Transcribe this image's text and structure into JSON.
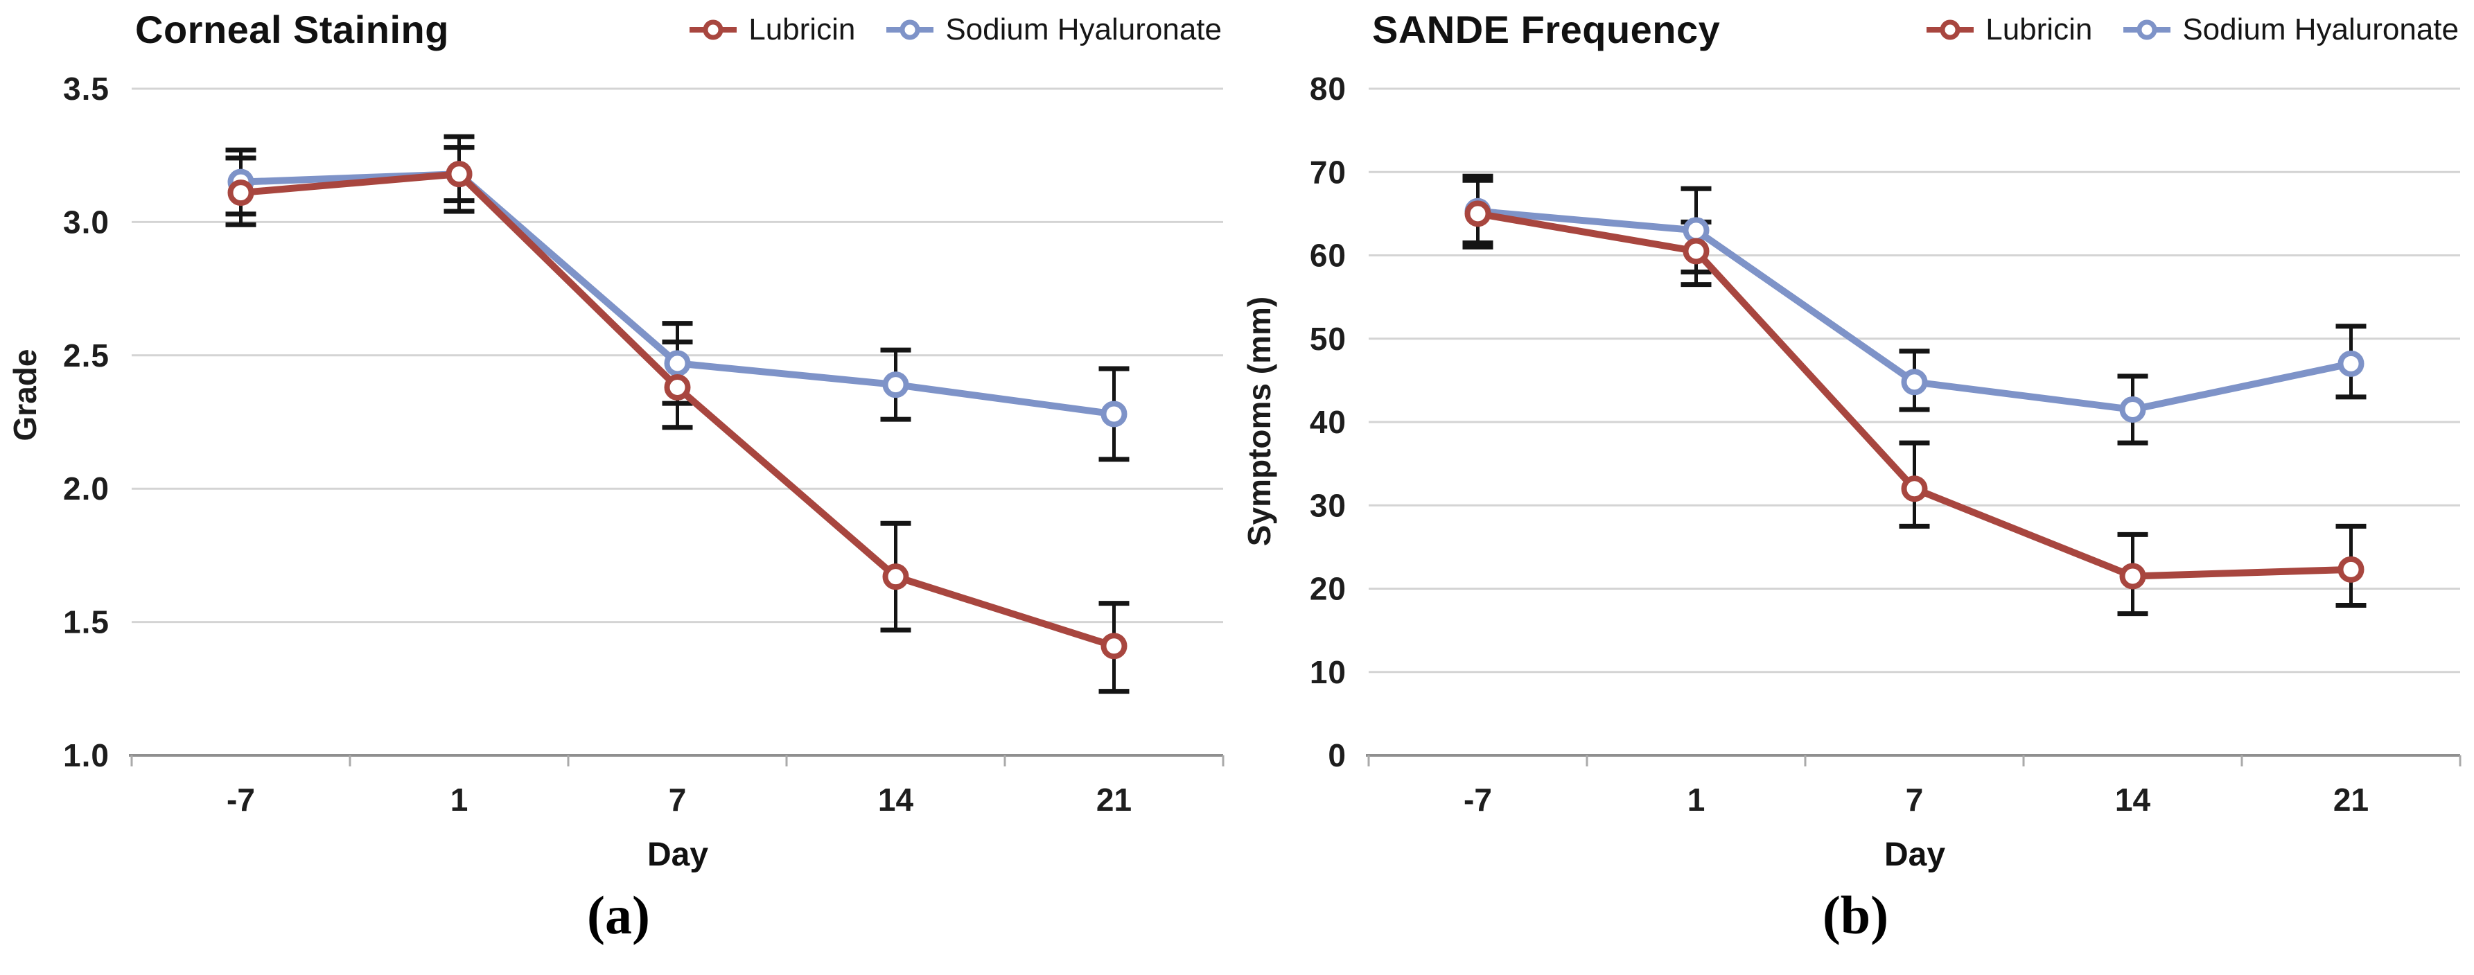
{
  "panel_labels": [
    "(a)",
    "(b)"
  ],
  "colors": {
    "lubricin": "#a8463f",
    "sodium_hyaluronate": "#7e93c8",
    "error_bar": "#141414",
    "gridline": "#d4d4d4",
    "axis_line": "#8f8f8f"
  },
  "chart_data": [
    {
      "type": "line",
      "title": "Corneal Staining",
      "xlabel": "Day",
      "ylabel": "Grade",
      "categories": [
        "-7",
        "1",
        "7",
        "14",
        "21"
      ],
      "ylim": [
        1.0,
        3.5
      ],
      "yticks": [
        1.0,
        1.5,
        2.0,
        2.5,
        3.0,
        3.5
      ],
      "ytick_labels": [
        "1.0",
        "1.5",
        "2.0",
        "2.5",
        "3.0",
        "3.5"
      ],
      "grid": true,
      "legend_position": "top-right",
      "error_bars": true,
      "series": [
        {
          "name": "Lubricin",
          "color": "#a8463f",
          "values": [
            3.11,
            3.18,
            2.38,
            1.67,
            1.41
          ],
          "err_low": [
            2.99,
            3.04,
            2.23,
            1.47,
            1.24
          ],
          "err_high": [
            3.24,
            3.28,
            2.55,
            1.87,
            1.57
          ]
        },
        {
          "name": "Sodium Hyaluronate",
          "color": "#7e93c8",
          "values": [
            3.15,
            3.18,
            2.47,
            2.39,
            2.28
          ],
          "err_low": [
            3.03,
            3.08,
            2.32,
            2.26,
            2.11
          ],
          "err_high": [
            3.27,
            3.32,
            2.62,
            2.52,
            2.45
          ]
        }
      ]
    },
    {
      "type": "line",
      "title": "SANDE Frequency",
      "xlabel": "Day",
      "ylabel": "Symptoms (mm)",
      "categories": [
        "-7",
        "1",
        "7",
        "14",
        "21"
      ],
      "ylim": [
        0,
        80
      ],
      "yticks": [
        0,
        10,
        20,
        30,
        40,
        50,
        60,
        70,
        80
      ],
      "ytick_labels": [
        "0",
        "10",
        "20",
        "30",
        "40",
        "50",
        "60",
        "70",
        "80"
      ],
      "grid": true,
      "legend_position": "top-right",
      "error_bars": true,
      "series": [
        {
          "name": "Lubricin",
          "color": "#a8463f",
          "values": [
            65,
            60.5,
            32,
            21.5,
            22.3
          ],
          "err_low": [
            61,
            56.5,
            27.5,
            17,
            18
          ],
          "err_high": [
            69,
            64,
            37.5,
            26.5,
            27.5
          ]
        },
        {
          "name": "Sodium Hyaluronate",
          "color": "#7e93c8",
          "values": [
            65.3,
            63,
            44.8,
            41.5,
            47
          ],
          "err_low": [
            61.5,
            58,
            41.5,
            37.5,
            43
          ],
          "err_high": [
            69.5,
            68,
            48.5,
            45.5,
            51.5
          ]
        }
      ]
    }
  ]
}
